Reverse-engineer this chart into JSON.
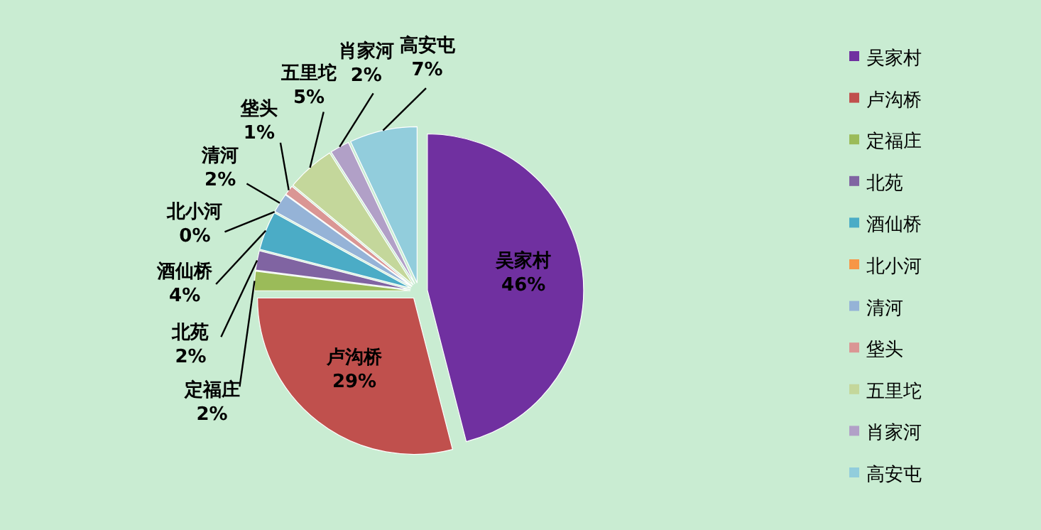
{
  "chart_data": {
    "type": "pie",
    "categories": [
      "吴家村",
      "卢沟桥",
      "定福庄",
      "北苑",
      "酒仙桥",
      "北小河",
      "清河",
      "垡头",
      "五里坨",
      "肖家河",
      "高安屯"
    ],
    "values": [
      46,
      29,
      2,
      2,
      4,
      0,
      2,
      1,
      5,
      2,
      7
    ],
    "colors": [
      "#7030a0",
      "#c0504d",
      "#9bbb59",
      "#8064a2",
      "#4bacc6",
      "#f79646",
      "#95b3d7",
      "#da9694",
      "#c4d79b",
      "#b1a0c7",
      "#92cddc"
    ],
    "value_labels": [
      "46%",
      "29%",
      "2%",
      "2%",
      "4%",
      "0%",
      "2%",
      "1%",
      "5%",
      "2%",
      "7%"
    ],
    "legend": "right"
  }
}
